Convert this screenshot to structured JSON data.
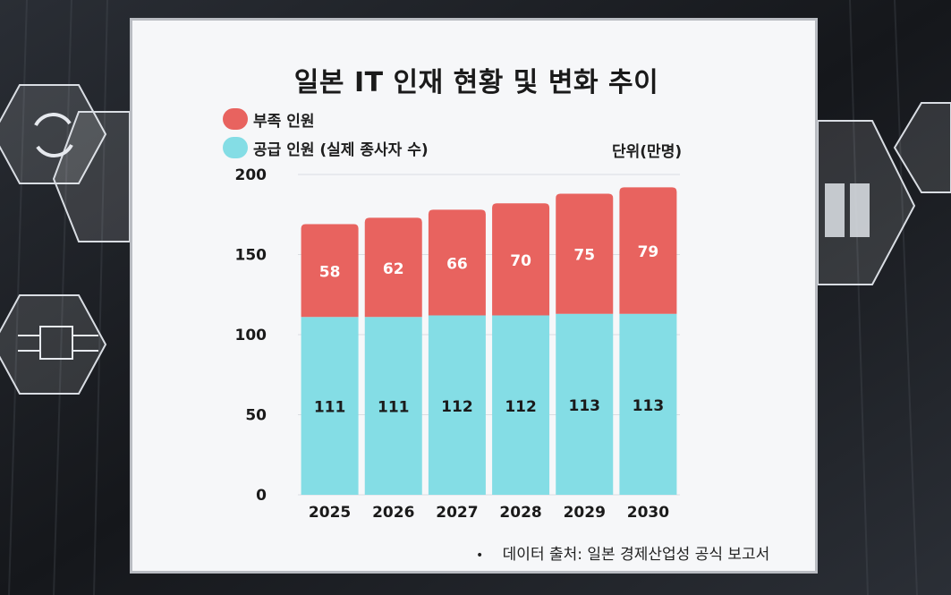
{
  "chart_data": {
    "type": "bar",
    "stacked": true,
    "title": "일본 IT 인재 현황 및 변화 추이",
    "unit_label": "단위(만명)",
    "categories": [
      "2025",
      "2026",
      "2027",
      "2028",
      "2029",
      "2030"
    ],
    "series": [
      {
        "name": "공급 인원 (실제 종사자 수)",
        "values": [
          111,
          111,
          112,
          112,
          113,
          113
        ],
        "color": "#84dde5",
        "label_color": "#1a1a1a"
      },
      {
        "name": "부족 인원",
        "values": [
          58,
          62,
          66,
          70,
          75,
          79
        ],
        "color": "#e8635f",
        "label_color": "#ffffff"
      }
    ],
    "ylim": [
      0,
      200
    ],
    "yticks": [
      0,
      50,
      100,
      150,
      200
    ],
    "grid": true,
    "legend_position": "top-left"
  },
  "source": "데이터 출처: 일본 경제산업성 공식 보고서",
  "source_bullet": "•"
}
